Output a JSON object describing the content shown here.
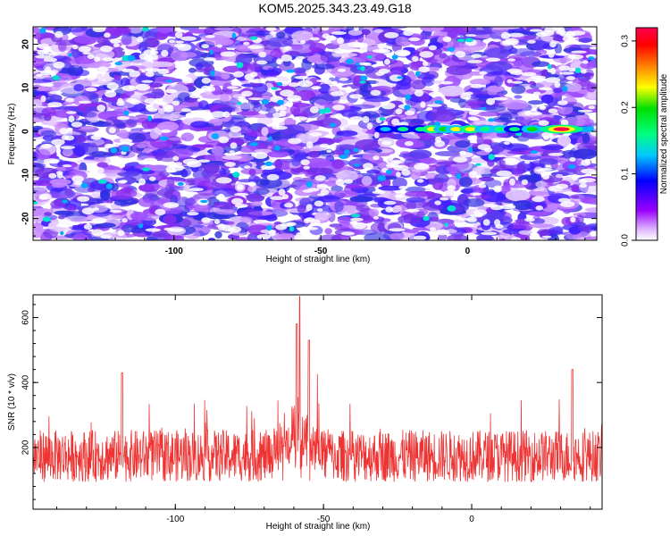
{
  "title": "KOM5.2025.343.23.49.G18",
  "chart_data": [
    {
      "type": "heatmap",
      "xlabel": "Height of straight line (km)",
      "ylabel": "Frequency (Hz)",
      "xlim": [
        -148,
        44
      ],
      "ylim": [
        -25,
        24
      ],
      "x_ticks": [
        -100,
        -50,
        0
      ],
      "y_ticks": [
        -20,
        -10,
        0,
        10,
        20
      ],
      "colorbar": {
        "label": "Normalized spectral amplitude",
        "range": [
          0.0,
          0.32
        ],
        "ticks": [
          "0.0",
          "0.1",
          "0.2",
          "0.3"
        ],
        "colors": [
          "#ffffff",
          "#9b00ff",
          "#0000ff",
          "#00c8ff",
          "#00ff80",
          "#00ff00",
          "#ffff00",
          "#ff8000",
          "#ff0000",
          "#ff0050"
        ]
      },
      "background_amplitude": 0.05,
      "signal_track": {
        "frequency_hz": 0.5,
        "x_range": [
          -30,
          43
        ],
        "peak_x": 32,
        "peak_amplitude": 0.31,
        "blobs": [
          {
            "x": -28,
            "amplitude": 0.1
          },
          {
            "x": -22,
            "amplitude": 0.14
          },
          {
            "x": -16,
            "amplitude": 0.13
          },
          {
            "x": -12,
            "amplitude": 0.22
          },
          {
            "x": -8,
            "amplitude": 0.17
          },
          {
            "x": -4,
            "amplitude": 0.2
          },
          {
            "x": 1,
            "amplitude": 0.23
          },
          {
            "x": 6,
            "amplitude": 0.16
          },
          {
            "x": 11,
            "amplitude": 0.15
          },
          {
            "x": 16,
            "amplitude": 0.13
          },
          {
            "x": 22,
            "amplitude": 0.19
          },
          {
            "x": 32,
            "amplitude": 0.31
          }
        ]
      }
    },
    {
      "type": "line",
      "xlabel": "Height of straight line (km)",
      "ylabel": "SNR (10 * v/v)",
      "xlim": [
        -148,
        44
      ],
      "ylim": [
        10,
        670
      ],
      "x_ticks": [
        -100,
        -50,
        0
      ],
      "y_ticks": [
        200,
        400,
        600
      ],
      "line_color": "#ee3333",
      "noise_baseline": 150,
      "noise_spread": 160,
      "peak": {
        "x": -58,
        "y": 665
      },
      "secondary_peaks": [
        {
          "x": -55,
          "y": 530
        },
        {
          "x": -59,
          "y": 580
        },
        {
          "x": -118,
          "y": 430
        },
        {
          "x": 34,
          "y": 440
        }
      ]
    }
  ]
}
